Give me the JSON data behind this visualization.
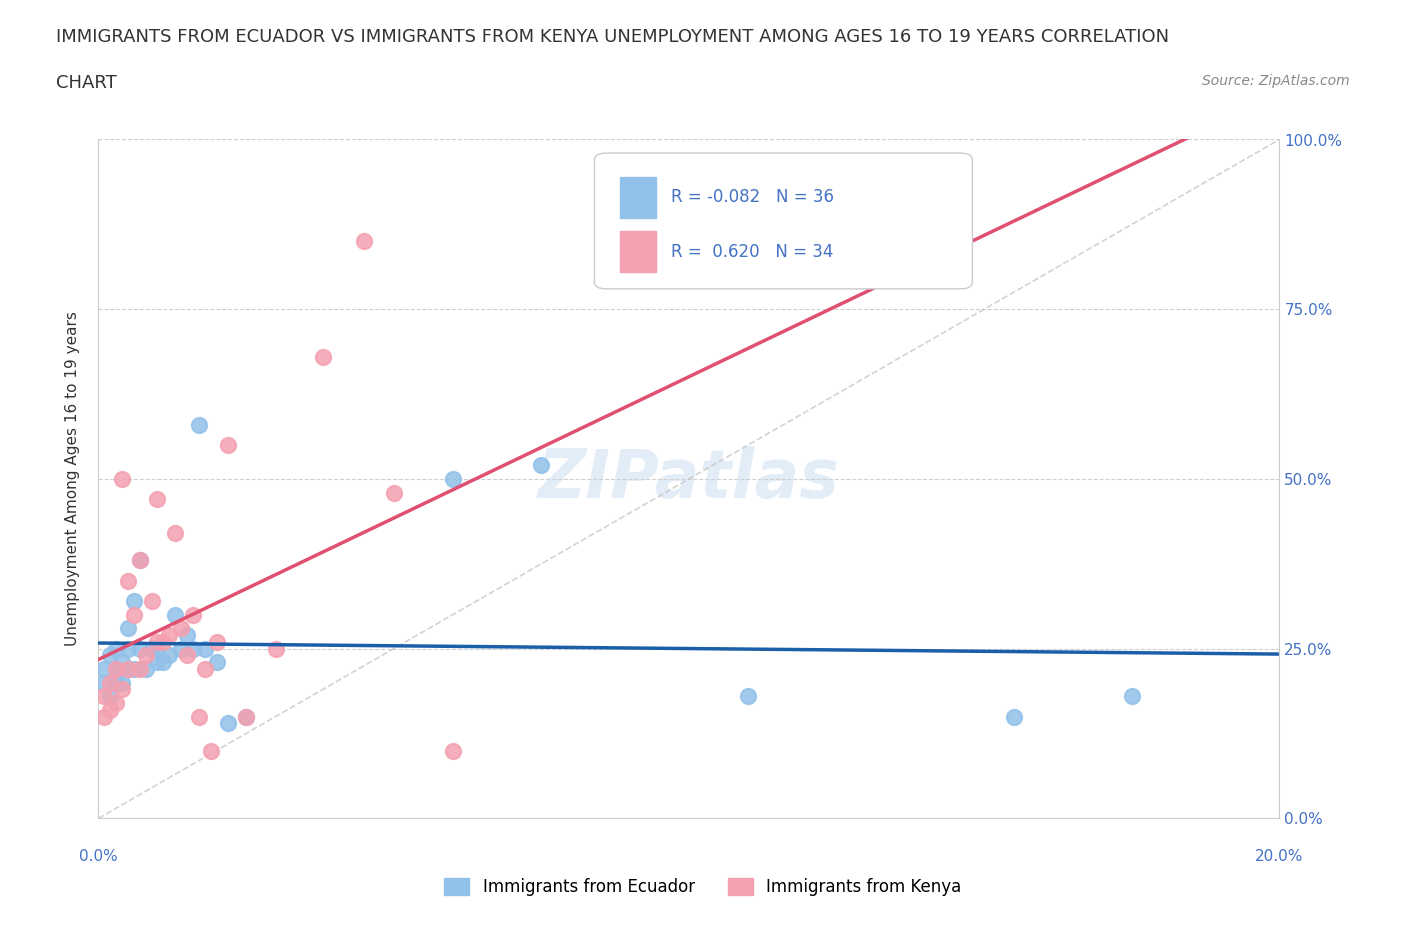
{
  "title_line1": "IMMIGRANTS FROM ECUADOR VS IMMIGRANTS FROM KENYA UNEMPLOYMENT AMONG AGES 16 TO 19 YEARS CORRELATION",
  "title_line2": "CHART",
  "source": "Source: ZipAtlas.com",
  "ylabel": "Unemployment Among Ages 16 to 19 years",
  "r_ecuador": -0.082,
  "n_ecuador": 36,
  "r_kenya": 0.62,
  "n_kenya": 34,
  "ecuador_color": "#91c0e8",
  "kenya_color": "#f4a0b0",
  "ecuador_line_color": "#1a5fa8",
  "kenya_line_color": "#e05070",
  "diagonal_color": "#c0c0c0",
  "ecuador_points_x": [
    0.001,
    0.001,
    0.002,
    0.002,
    0.003,
    0.003,
    0.003,
    0.004,
    0.004,
    0.005,
    0.005,
    0.005,
    0.006,
    0.006,
    0.007,
    0.007,
    0.008,
    0.009,
    0.01,
    0.01,
    0.011,
    0.012,
    0.013,
    0.014,
    0.015,
    0.016,
    0.017,
    0.018,
    0.02,
    0.022,
    0.025,
    0.06,
    0.075,
    0.11,
    0.155,
    0.175
  ],
  "ecuador_points_y": [
    0.2,
    0.22,
    0.18,
    0.24,
    0.2,
    0.22,
    0.25,
    0.23,
    0.2,
    0.22,
    0.25,
    0.28,
    0.22,
    0.32,
    0.25,
    0.38,
    0.22,
    0.25,
    0.23,
    0.25,
    0.23,
    0.24,
    0.3,
    0.25,
    0.27,
    0.25,
    0.58,
    0.25,
    0.23,
    0.14,
    0.15,
    0.5,
    0.52,
    0.18,
    0.15,
    0.18
  ],
  "kenya_points_x": [
    0.001,
    0.001,
    0.002,
    0.002,
    0.003,
    0.003,
    0.004,
    0.004,
    0.005,
    0.005,
    0.006,
    0.007,
    0.007,
    0.008,
    0.009,
    0.01,
    0.01,
    0.011,
    0.012,
    0.013,
    0.014,
    0.015,
    0.016,
    0.017,
    0.018,
    0.019,
    0.02,
    0.022,
    0.025,
    0.03,
    0.038,
    0.045,
    0.05,
    0.06
  ],
  "kenya_points_y": [
    0.15,
    0.18,
    0.16,
    0.2,
    0.17,
    0.22,
    0.19,
    0.5,
    0.22,
    0.35,
    0.3,
    0.22,
    0.38,
    0.24,
    0.32,
    0.26,
    0.47,
    0.26,
    0.27,
    0.42,
    0.28,
    0.24,
    0.3,
    0.15,
    0.22,
    0.1,
    0.26,
    0.55,
    0.15,
    0.25,
    0.68,
    0.85,
    0.48,
    0.1
  ],
  "watermark": "ZIPatlas",
  "background_color": "#ffffff",
  "grid_color": "#d0d0d0",
  "ytick_labels": [
    "0.0%",
    "25.0%",
    "50.0%",
    "75.0%",
    "100.0%"
  ],
  "ytick_values": [
    0.0,
    0.25,
    0.5,
    0.75,
    1.0
  ],
  "xtick_values": [
    0.0,
    0.05,
    0.1,
    0.15,
    0.2
  ],
  "xlim": [
    0.0,
    0.2
  ],
  "ylim": [
    0.0,
    1.0
  ]
}
